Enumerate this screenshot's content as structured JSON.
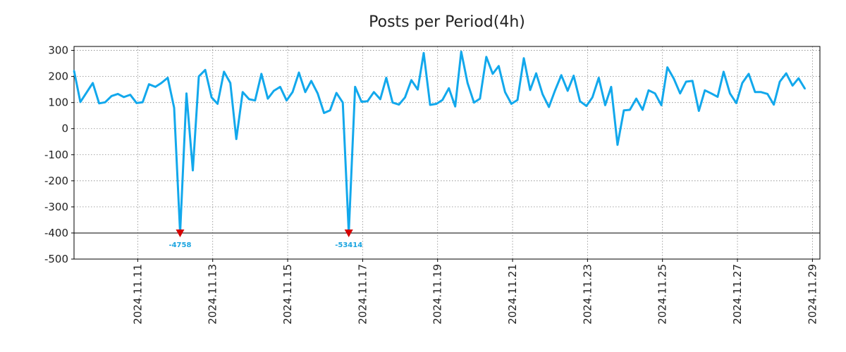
{
  "chart_data": {
    "type": "line",
    "title": "Posts per Period(4h)",
    "xlabel": "",
    "ylabel": "",
    "ylim": [
      -500,
      320
    ],
    "x_range": [
      9.3,
      29.2
    ],
    "grid": true,
    "y_ticks": [
      300,
      200,
      100,
      0,
      -100,
      -200,
      -300,
      -400,
      -500
    ],
    "x_ticks": [
      {
        "value": 11,
        "label": "2024.11.11"
      },
      {
        "value": 13,
        "label": "2024.11.13"
      },
      {
        "value": 15,
        "label": "2024.11.15"
      },
      {
        "value": 17,
        "label": "2024.11.17"
      },
      {
        "value": 19,
        "label": "2024.11.19"
      },
      {
        "value": 21,
        "label": "2024.11.21"
      },
      {
        "value": 23,
        "label": "2024.11.23"
      },
      {
        "value": 25,
        "label": "2024.11.25"
      },
      {
        "value": 27,
        "label": "2024.11.27"
      },
      {
        "value": 29,
        "label": "2024.11.29"
      }
    ],
    "reference_line": -400,
    "series": [
      {
        "name": "Posts",
        "color": "#12a8ec",
        "points": [
          [
            9.3,
            222
          ],
          [
            9.47,
            102
          ],
          [
            9.8,
            175
          ],
          [
            9.97,
            97
          ],
          [
            10.13,
            101
          ],
          [
            10.3,
            125
          ],
          [
            10.47,
            133
          ],
          [
            10.63,
            121
          ],
          [
            10.8,
            130
          ],
          [
            10.97,
            98
          ],
          [
            11.13,
            101
          ],
          [
            11.3,
            170
          ],
          [
            11.47,
            160
          ],
          [
            11.63,
            175
          ],
          [
            11.8,
            195
          ],
          [
            11.97,
            80
          ],
          [
            12.13,
            -400
          ],
          [
            12.3,
            135
          ],
          [
            12.47,
            -160
          ],
          [
            12.63,
            200
          ],
          [
            12.8,
            225
          ],
          [
            12.97,
            120
          ],
          [
            13.13,
            95
          ],
          [
            13.3,
            218
          ],
          [
            13.47,
            175
          ],
          [
            13.63,
            -40
          ],
          [
            13.8,
            140
          ],
          [
            13.97,
            113
          ],
          [
            14.13,
            108
          ],
          [
            14.3,
            210
          ],
          [
            14.47,
            115
          ],
          [
            14.63,
            145
          ],
          [
            14.8,
            160
          ],
          [
            14.97,
            108
          ],
          [
            15.13,
            140
          ],
          [
            15.3,
            215
          ],
          [
            15.47,
            140
          ],
          [
            15.63,
            183
          ],
          [
            15.8,
            135
          ],
          [
            15.97,
            60
          ],
          [
            16.13,
            70
          ],
          [
            16.3,
            137
          ],
          [
            16.47,
            100
          ],
          [
            16.63,
            -400
          ],
          [
            16.8,
            160
          ],
          [
            16.97,
            103
          ],
          [
            17.13,
            105
          ],
          [
            17.3,
            140
          ],
          [
            17.47,
            113
          ],
          [
            17.63,
            195
          ],
          [
            17.8,
            100
          ],
          [
            17.97,
            92
          ],
          [
            18.13,
            120
          ],
          [
            18.3,
            186
          ],
          [
            18.47,
            150
          ],
          [
            18.63,
            290
          ],
          [
            18.8,
            91
          ],
          [
            18.97,
            95
          ],
          [
            19.13,
            110
          ],
          [
            19.3,
            155
          ],
          [
            19.47,
            85
          ],
          [
            19.63,
            295
          ],
          [
            19.8,
            175
          ],
          [
            19.97,
            100
          ],
          [
            20.13,
            115
          ],
          [
            20.3,
            275
          ],
          [
            20.47,
            210
          ],
          [
            20.63,
            240
          ],
          [
            20.8,
            140
          ],
          [
            20.97,
            95
          ],
          [
            21.13,
            110
          ],
          [
            21.3,
            270
          ],
          [
            21.47,
            148
          ],
          [
            21.63,
            212
          ],
          [
            21.8,
            132
          ],
          [
            21.97,
            83
          ],
          [
            22.13,
            145
          ],
          [
            22.3,
            205
          ],
          [
            22.47,
            145
          ],
          [
            22.63,
            203
          ],
          [
            22.8,
            105
          ],
          [
            22.97,
            87
          ],
          [
            23.13,
            120
          ],
          [
            23.3,
            195
          ],
          [
            23.47,
            90
          ],
          [
            23.63,
            160
          ],
          [
            23.8,
            -62
          ],
          [
            23.97,
            70
          ],
          [
            24.13,
            72
          ],
          [
            24.3,
            115
          ],
          [
            24.47,
            72
          ],
          [
            24.63,
            147
          ],
          [
            24.8,
            135
          ],
          [
            24.97,
            90
          ],
          [
            25.13,
            235
          ],
          [
            25.3,
            192
          ],
          [
            25.47,
            135
          ],
          [
            25.63,
            180
          ],
          [
            25.8,
            183
          ],
          [
            25.97,
            68
          ],
          [
            26.13,
            147
          ],
          [
            26.3,
            135
          ],
          [
            26.47,
            122
          ],
          [
            26.63,
            218
          ],
          [
            26.8,
            135
          ],
          [
            26.97,
            98
          ],
          [
            27.13,
            175
          ],
          [
            27.3,
            210
          ],
          [
            27.47,
            140
          ],
          [
            27.63,
            140
          ],
          [
            27.8,
            133
          ],
          [
            27.97,
            92
          ],
          [
            28.13,
            180
          ],
          [
            28.3,
            212
          ],
          [
            28.47,
            165
          ],
          [
            28.63,
            193
          ],
          [
            28.8,
            153
          ]
        ]
      }
    ],
    "annotations": [
      {
        "x": 12.13,
        "y": -400,
        "label": "-4758",
        "color": "#d40000"
      },
      {
        "x": 16.63,
        "y": -400,
        "label": "-53414",
        "color": "#d40000"
      }
    ]
  }
}
